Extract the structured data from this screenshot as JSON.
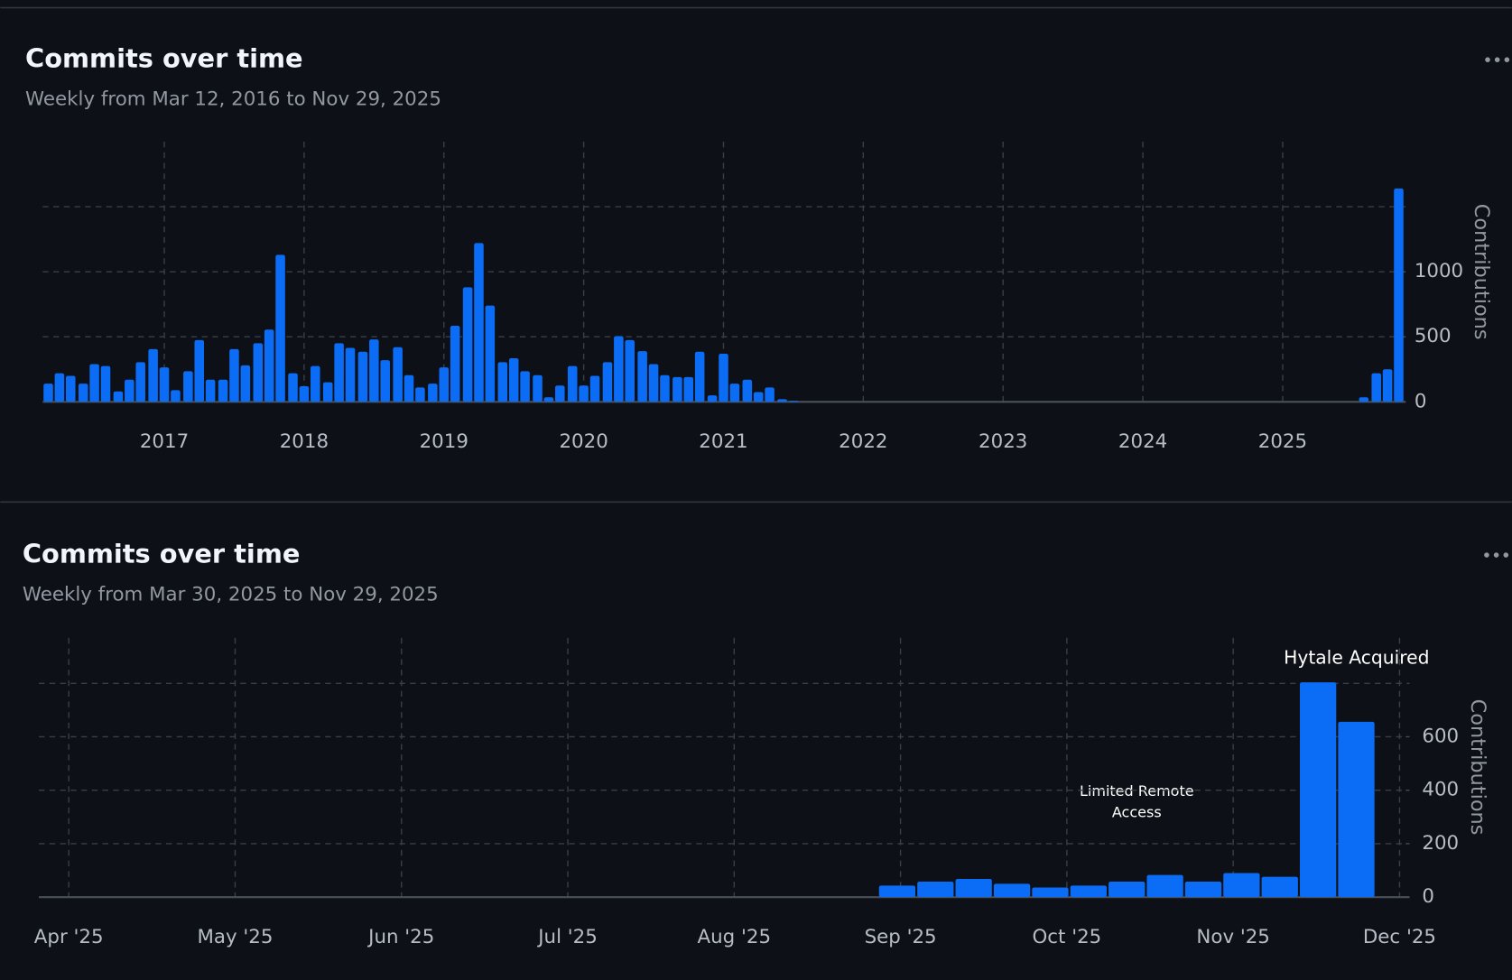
{
  "chart_data": [
    {
      "type": "bar",
      "title": "Commits over time",
      "subtitle": "Weekly from Mar 12, 2016 to Nov 29, 2025",
      "y_label": "Contributions",
      "color": "#0b6cf5",
      "grid": true,
      "x": [
        2016.17,
        2016.25,
        2016.33,
        2016.42,
        2016.5,
        2016.58,
        2016.67,
        2016.75,
        2016.83,
        2016.92,
        2017.0,
        2017.08,
        2017.17,
        2017.25,
        2017.33,
        2017.42,
        2017.5,
        2017.58,
        2017.67,
        2017.75,
        2017.83,
        2017.92,
        2018.0,
        2018.08,
        2018.17,
        2018.25,
        2018.33,
        2018.42,
        2018.5,
        2018.58,
        2018.67,
        2018.75,
        2018.83,
        2018.92,
        2019.0,
        2019.08,
        2019.17,
        2019.25,
        2019.33,
        2019.42,
        2019.5,
        2019.58,
        2019.67,
        2019.75,
        2019.83,
        2019.92,
        2020.0,
        2020.08,
        2020.17,
        2020.25,
        2020.33,
        2020.42,
        2020.5,
        2020.58,
        2020.67,
        2020.75,
        2020.83,
        2020.92,
        2021.0,
        2021.08,
        2021.17,
        2021.25,
        2021.33,
        2021.42,
        2021.5,
        2021.58,
        2021.67,
        2021.75,
        2021.83,
        2021.92,
        2022.0,
        2022.08,
        2022.17,
        2022.25,
        2022.33,
        2022.42,
        2022.5,
        2022.58,
        2022.67,
        2022.75,
        2022.83,
        2022.92,
        2023.0,
        2023.08,
        2023.17,
        2023.25,
        2023.33,
        2023.42,
        2023.5,
        2023.58,
        2023.67,
        2023.75,
        2023.83,
        2023.92,
        2024.0,
        2024.08,
        2024.17,
        2024.25,
        2024.33,
        2024.42,
        2024.5,
        2024.58,
        2024.67,
        2024.75,
        2024.83,
        2024.92,
        2025.0,
        2025.08,
        2025.17,
        2025.25,
        2025.33,
        2025.42,
        2025.5,
        2025.58,
        2025.67,
        2025.75,
        2025.83
      ],
      "values": [
        140,
        220,
        200,
        140,
        290,
        275,
        80,
        170,
        305,
        405,
        265,
        90,
        235,
        475,
        170,
        170,
        405,
        280,
        450,
        555,
        1130,
        220,
        120,
        275,
        150,
        450,
        415,
        385,
        480,
        320,
        420,
        205,
        110,
        140,
        265,
        585,
        880,
        1220,
        740,
        305,
        335,
        235,
        205,
        35,
        125,
        275,
        125,
        200,
        305,
        505,
        475,
        390,
        290,
        205,
        190,
        190,
        385,
        50,
        370,
        140,
        170,
        75,
        110,
        20,
        8,
        0,
        0,
        0,
        0,
        0,
        0,
        0,
        0,
        0,
        0,
        0,
        0,
        0,
        0,
        0,
        0,
        0,
        0,
        0,
        0,
        0,
        0,
        0,
        0,
        0,
        0,
        0,
        0,
        0,
        0,
        0,
        0,
        0,
        0,
        0,
        0,
        0,
        0,
        0,
        0,
        0,
        0,
        0,
        0,
        0,
        0,
        0,
        0,
        35,
        220,
        250,
        1640
      ],
      "xlim": [
        2016.13,
        2025.88
      ],
      "xticks": [
        2017,
        2018,
        2019,
        2020,
        2021,
        2022,
        2023,
        2024,
        2025
      ],
      "ylim": [
        0,
        2000
      ],
      "yticks": [
        0,
        500,
        1000
      ],
      "ygrid": [
        500,
        1000,
        1500
      ]
    },
    {
      "type": "bar",
      "title": "Commits over time",
      "subtitle": "Weekly from Mar 30, 2025 to Nov 29, 2025",
      "y_label": "Contributions",
      "color": "#0b6cf5",
      "grid": true,
      "x": [
        8.98,
        9.21,
        9.44,
        9.67,
        9.9,
        10.13,
        10.36,
        10.59,
        10.82,
        11.05,
        11.28,
        11.51,
        11.74
      ],
      "values": [
        43,
        58,
        68,
        50,
        36,
        43,
        58,
        83,
        58,
        90,
        76,
        804,
        656
      ],
      "xlim": [
        3.82,
        12.06
      ],
      "xticks": [
        {
          "value": 4,
          "label": "Apr '25"
        },
        {
          "value": 5,
          "label": "May '25"
        },
        {
          "value": 6,
          "label": "Jun '25"
        },
        {
          "value": 7,
          "label": "Jul '25"
        },
        {
          "value": 8,
          "label": "Aug '25"
        },
        {
          "value": 9,
          "label": "Sep '25"
        },
        {
          "value": 10,
          "label": "Oct '25"
        },
        {
          "value": 11,
          "label": "Nov '25"
        },
        {
          "value": 12,
          "label": "Dec '25"
        }
      ],
      "ylim": [
        0,
        970
      ],
      "yticks": [
        0,
        200,
        400,
        600
      ],
      "ygrid": [
        200,
        400,
        600,
        800
      ],
      "annotations": [
        {
          "text": "Hytale Acquired"
        },
        {
          "text": "Limited Remote Access"
        }
      ]
    }
  ]
}
